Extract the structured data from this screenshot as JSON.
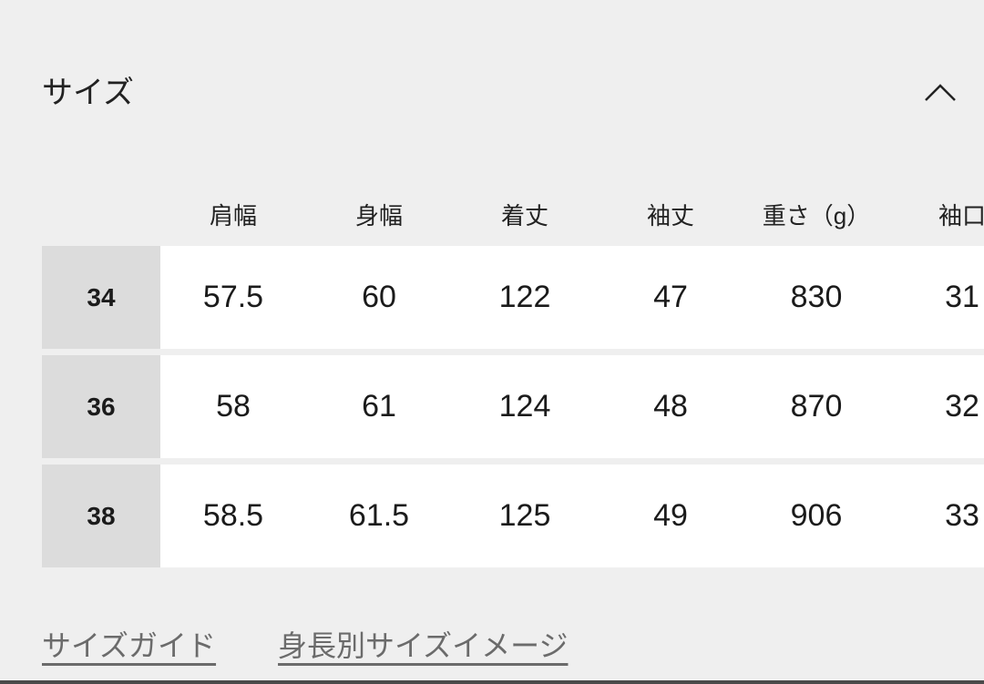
{
  "section": {
    "title": "サイズ",
    "collapse_icon": "chevron-up-icon"
  },
  "table": {
    "headers": [
      "肩幅",
      "身幅",
      "着丈",
      "袖丈",
      "重さ（g）",
      "袖口"
    ],
    "rows": [
      {
        "size": "34",
        "values": [
          "57.5",
          "60",
          "122",
          "47",
          "830",
          "31"
        ]
      },
      {
        "size": "36",
        "values": [
          "58",
          "61",
          "124",
          "48",
          "870",
          "32"
        ]
      },
      {
        "size": "38",
        "values": [
          "58.5",
          "61.5",
          "125",
          "49",
          "906",
          "33"
        ]
      }
    ]
  },
  "links": {
    "size_guide": "サイズガイド",
    "height_size_image": "身長別サイズイメージ"
  }
}
